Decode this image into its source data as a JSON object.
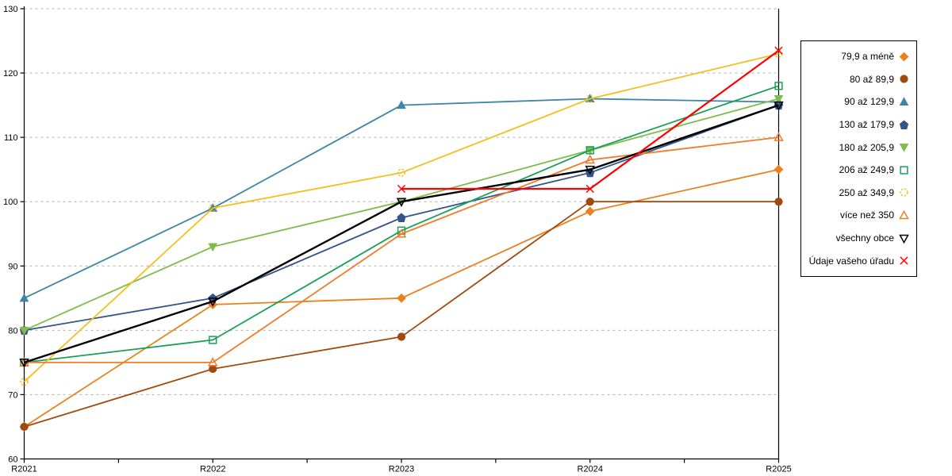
{
  "chart_data": {
    "type": "line",
    "title": "",
    "xlabel": "",
    "ylabel": "",
    "categories": [
      "R2021",
      "R2022",
      "R2023",
      "R2024",
      "R2025"
    ],
    "y_axis": {
      "min": 60,
      "max": 130,
      "step": 10,
      "tick_labels": [
        "60",
        "70",
        "80",
        "90",
        "100",
        "110",
        "120",
        "130"
      ]
    },
    "grid": "horizontal-dashed",
    "grid_color": "#b0b0b0",
    "legend_position": "right",
    "series": [
      {
        "name": "79,9 a méně",
        "marker": "diamond",
        "filled": true,
        "color": "#e8821e",
        "line_width": 1.8,
        "values": [
          65,
          84,
          85,
          98.5,
          105
        ]
      },
      {
        "name": "80 až 89,9",
        "marker": "circle",
        "filled": true,
        "color": "#a04a10",
        "line_width": 1.8,
        "values": [
          65,
          74,
          79,
          100,
          100
        ]
      },
      {
        "name": "90 až 129,9",
        "marker": "triangle-up",
        "filled": true,
        "color": "#3e86a5",
        "line_width": 1.8,
        "values": [
          85,
          99,
          115,
          116,
          115.5
        ]
      },
      {
        "name": "130 až 179,9",
        "marker": "pentagon",
        "filled": true,
        "color": "#34558b",
        "line_width": 1.8,
        "values": [
          80,
          85,
          97.5,
          104.5,
          115
        ]
      },
      {
        "name": "180 až 205,9",
        "marker": "triangle-down",
        "filled": true,
        "color": "#7fbc49",
        "line_width": 1.8,
        "values": [
          80,
          93,
          100,
          108,
          116
        ]
      },
      {
        "name": "206 až 249,9",
        "marker": "square",
        "filled": false,
        "color": "#1aa058",
        "line_width": 1.8,
        "values": [
          75,
          78.5,
          95.5,
          108,
          118
        ]
      },
      {
        "name": "250 až 349,9",
        "marker": "circle-dashed",
        "filled": false,
        "color": "#f2c01c",
        "line_width": 1.8,
        "values": [
          72,
          99,
          104.5,
          116,
          123
        ]
      },
      {
        "name": "více než 350",
        "marker": "triangle-up",
        "filled": false,
        "color": "#f07b28",
        "line_width": 1.8,
        "values": [
          75,
          75,
          95,
          106.5,
          110
        ]
      },
      {
        "name": "všechny obce",
        "marker": "triangle-down",
        "filled": false,
        "color": "#000000",
        "line_width": 2.4,
        "values": [
          75,
          84.5,
          100,
          105,
          115
        ]
      },
      {
        "name": "Údaje vašeho úřadu",
        "marker": "x",
        "filled": false,
        "color": "#fe0000",
        "line_width": 2.2,
        "values": [
          null,
          null,
          102,
          102,
          123.5
        ]
      }
    ]
  }
}
